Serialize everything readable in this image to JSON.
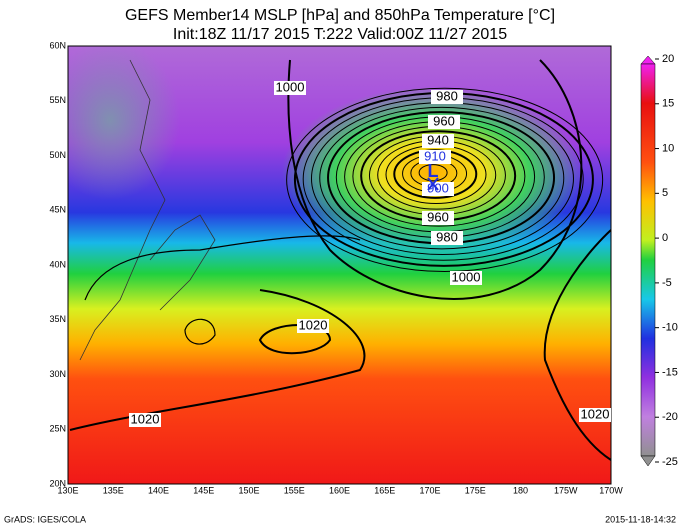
{
  "title": "GEFS Member14 MSLP [hPa] and 850hPa Temperature [°C]",
  "subtitle": "Init:18Z 11/17 2015 T:222 Valid:00Z 11/27 2015",
  "map": {
    "lat_labels": [
      "60N",
      "55N",
      "50N",
      "45N",
      "40N",
      "35N",
      "30N",
      "25N",
      "20N"
    ],
    "lon_labels": [
      "130E",
      "135E",
      "140E",
      "145E",
      "150E",
      "155E",
      "160E",
      "165E",
      "170E",
      "175E",
      "180",
      "175W",
      "170W"
    ],
    "contour_labels": [
      "1000",
      "980",
      "960",
      "940",
      "910",
      "900",
      "960",
      "980",
      "1000",
      "1020",
      "1020",
      "1020"
    ],
    "low_label": "L"
  },
  "colorbar": {
    "ticks": [
      20,
      15,
      10,
      5,
      0,
      -5,
      -10,
      -15,
      -20,
      -25
    ]
  },
  "footer": {
    "left": "GrADS: IGES/COLA",
    "right": "2015-11-18-14:32"
  }
}
